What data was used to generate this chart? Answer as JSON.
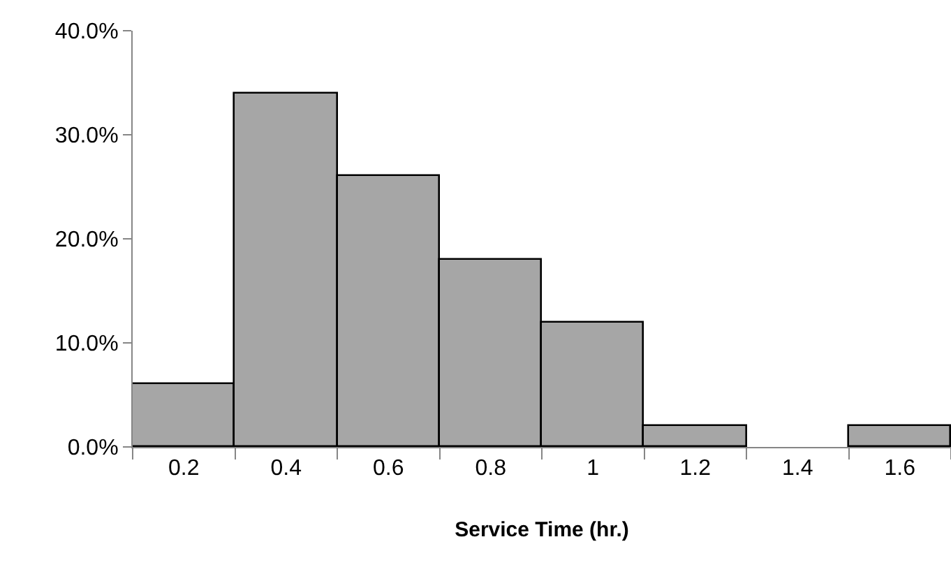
{
  "chart_data": {
    "type": "bar",
    "xlabel": "Service Time (hr.)",
    "categories": [
      "0.2",
      "0.4",
      "0.6",
      "0.8",
      "1",
      "1.2",
      "1.4",
      "1.6"
    ],
    "values": [
      6,
      34,
      26,
      18,
      12,
      2,
      0,
      2
    ],
    "color": "#a6a6a6",
    "ylim": [
      0,
      40
    ],
    "yticks": [
      {
        "value": 0,
        "label": "0.0%"
      },
      {
        "value": 10,
        "label": "10.0%"
      },
      {
        "value": 20,
        "label": "20.0%"
      },
      {
        "value": 30,
        "label": "30.0%"
      },
      {
        "value": 40,
        "label": "40.0%"
      }
    ],
    "legend": false
  }
}
